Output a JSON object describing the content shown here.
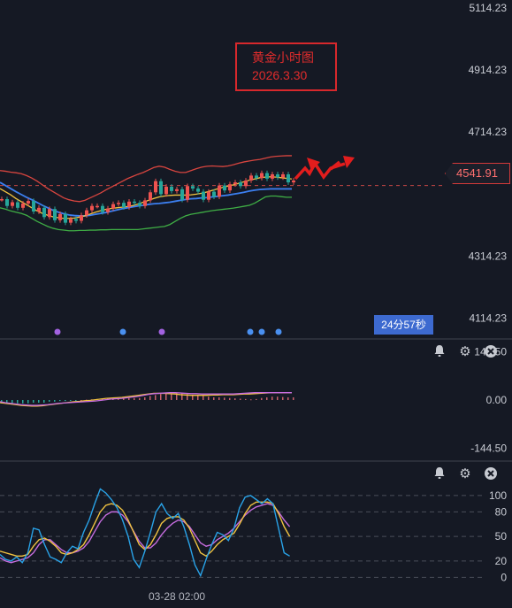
{
  "annotation": {
    "title": "黄金小时图",
    "date": "2026.3.30"
  },
  "price_tag": "4541.91",
  "countdown": "24分57秒",
  "time_label": "03-28 02:00",
  "colors": {
    "bg": "#151924",
    "up": "#ef5350",
    "down": "#26a69a",
    "upper_band": "#d8453f",
    "lower_band": "#3fae45",
    "mid_blue": "#3c7ff0",
    "ma_yellow": "#f1c341",
    "k_line": "#29a3e8",
    "d_line": "#f1c341",
    "j_line": "#c56cde",
    "dot_blue": "#4a90f0",
    "dot_purple": "#a262e0"
  },
  "panel_icons": {
    "alert": "bell-icon",
    "settings": "gear-icon",
    "close": "close-icon"
  },
  "chart_data": [
    {
      "type": "candlestick",
      "yticks": [
        "5114.23",
        "4914.23",
        "4714.23",
        "4314.23",
        "4114.23"
      ],
      "ylim": [
        4050,
        5140
      ],
      "last_price": 4541.91,
      "series": [
        {
          "name": "upper_band",
          "values": [
            4590,
            4588,
            4585,
            4583,
            4580,
            4574,
            4566,
            4556,
            4544,
            4532,
            4522,
            4512,
            4502,
            4496,
            4492,
            4490,
            4494,
            4502,
            4510,
            4518,
            4528,
            4537,
            4546,
            4555,
            4564,
            4571,
            4578,
            4584,
            4592,
            4600,
            4604,
            4601,
            4594,
            4588,
            4584,
            4584,
            4590,
            4596,
            4601,
            4604,
            4605,
            4604,
            4603,
            4605,
            4609,
            4614,
            4618,
            4621,
            4624,
            4626,
            4630,
            4634,
            4636,
            4637,
            4638,
            4638
          ]
        },
        {
          "name": "lower_band",
          "values": [
            4470,
            4466,
            4460,
            4456,
            4452,
            4446,
            4436,
            4426,
            4418,
            4410,
            4404,
            4400,
            4398,
            4396,
            4396,
            4397,
            4397,
            4398,
            4398,
            4399,
            4399,
            4400,
            4400,
            4400,
            4400,
            4400,
            4400,
            4402,
            4404,
            4406,
            4408,
            4410,
            4416,
            4426,
            4436,
            4444,
            4449,
            4452,
            4455,
            4458,
            4461,
            4463,
            4465,
            4467,
            4469,
            4472,
            4475,
            4478,
            4485,
            4495,
            4505,
            4508,
            4508,
            4506,
            4504,
            4504
          ]
        },
        {
          "name": "mid_blue",
          "values": [
            4552,
            4542,
            4532,
            4522,
            4513,
            4504,
            4496,
            4487,
            4478,
            4470,
            4462,
            4456,
            4451,
            4447,
            4445,
            4444,
            4444,
            4446,
            4449,
            4452,
            4455,
            4459,
            4463,
            4467,
            4470,
            4473,
            4476,
            4478,
            4481,
            4483,
            4484,
            4486,
            4488,
            4491,
            4494,
            4497,
            4499,
            4500,
            4502,
            4503,
            4505,
            4507,
            4509,
            4511,
            4514,
            4517,
            4520,
            4524,
            4527,
            4529,
            4530,
            4531,
            4531,
            4531,
            4531,
            4531
          ]
        },
        {
          "name": "ma_yellow",
          "values": [
            4532,
            4522,
            4512,
            4500,
            4490,
            4480,
            4470,
            4460,
            4452,
            4446,
            4441,
            4438,
            4436,
            4436,
            4437,
            4440,
            4444,
            4450,
            4456,
            4461,
            4465,
            4468,
            4470,
            4472,
            4474,
            4477,
            4482,
            4488,
            4494,
            4500,
            4505,
            4508,
            4510,
            4511,
            4511,
            4511,
            4512,
            4514,
            4517,
            4521,
            4526,
            4531,
            4536,
            4540,
            4544,
            4549,
            4554,
            4559,
            4563,
            4567,
            4569,
            4570,
            4569,
            4567,
            4565,
            4563
          ]
        },
        {
          "name": "candle_close",
          "values": [
            4498,
            4476,
            4488,
            4470,
            4484,
            4492,
            4458,
            4470,
            4440,
            4466,
            4430,
            4450,
            4422,
            4434,
            4428,
            4446,
            4462,
            4476,
            4476,
            4456,
            4468,
            4482,
            4486,
            4472,
            4490,
            4486,
            4476,
            4494,
            4520,
            4556,
            4514,
            4538,
            4524,
            4530,
            4496,
            4540,
            4532,
            4522,
            4496,
            4522,
            4506,
            4542,
            4526,
            4546,
            4552,
            4540,
            4558,
            4574,
            4566,
            4582,
            4564,
            4578,
            4568,
            4578,
            4552,
            4558
          ]
        }
      ]
    },
    {
      "type": "bar",
      "yticks": [
        "144.50",
        "0.00",
        "-144.50"
      ],
      "ylim": [
        -180,
        180
      ],
      "series": [
        {
          "name": "histogram",
          "values": [
            -10,
            -10,
            -10,
            -10,
            -10,
            -10,
            -8,
            -8,
            -8,
            -5,
            -5,
            -3,
            -3,
            -2,
            -1,
            0,
            1,
            2,
            3,
            4,
            5,
            5,
            5,
            6,
            6,
            6,
            6,
            8,
            12,
            15,
            18,
            20,
            20,
            22,
            20,
            18,
            16,
            14,
            12,
            10,
            8,
            8,
            7,
            6,
            5,
            4,
            3,
            2,
            3,
            6,
            8,
            10,
            10,
            9,
            8,
            8
          ]
        },
        {
          "name": "diff",
          "values": [
            -5,
            -8,
            -10,
            -12,
            -14,
            -15,
            -16,
            -16,
            -15,
            -14,
            -12,
            -10,
            -9,
            -8,
            -7,
            -6,
            -5,
            -4,
            -3,
            -1,
            1,
            3,
            4,
            5,
            7,
            9,
            11,
            14,
            17,
            19,
            20,
            21,
            22,
            22,
            21,
            20,
            19,
            19,
            18,
            18,
            18,
            18,
            18,
            18,
            18,
            19,
            20,
            21,
            22,
            22,
            22,
            22,
            22,
            22,
            22,
            22
          ]
        },
        {
          "name": "dea",
          "values": [
            -8,
            -10,
            -12,
            -14,
            -16,
            -17,
            -18,
            -18,
            -17,
            -15,
            -13,
            -11,
            -9,
            -7,
            -5,
            -4,
            -2,
            -1,
            1,
            3,
            5,
            6,
            7,
            8,
            10,
            12,
            14,
            16,
            18,
            20,
            20,
            20,
            19,
            18,
            16,
            15,
            14,
            14,
            14,
            14,
            15,
            15,
            16,
            16,
            16,
            17,
            18,
            18,
            19,
            20,
            21,
            22,
            22,
            22,
            22,
            22
          ]
        }
      ]
    },
    {
      "type": "line",
      "yticks": [
        "100",
        "80",
        "50",
        "20",
        "0"
      ],
      "ylim": [
        -5,
        115
      ],
      "series": [
        {
          "name": "K",
          "values": [
            28,
            22,
            20,
            25,
            18,
            30,
            60,
            58,
            40,
            25,
            22,
            18,
            30,
            38,
            35,
            55,
            70,
            90,
            108,
            103,
            95,
            85,
            70,
            50,
            22,
            12,
            32,
            55,
            80,
            90,
            78,
            72,
            78,
            62,
            40,
            15,
            2,
            22,
            40,
            55,
            52,
            45,
            60,
            85,
            98,
            100,
            95,
            90,
            96,
            90,
            60,
            30,
            26
          ]
        },
        {
          "name": "D",
          "values": [
            32,
            30,
            28,
            26,
            26,
            28,
            38,
            46,
            48,
            44,
            38,
            30,
            28,
            30,
            34,
            40,
            52,
            66,
            80,
            88,
            90,
            88,
            82,
            70,
            55,
            40,
            34,
            40,
            52,
            66,
            72,
            74,
            74,
            70,
            60,
            45,
            30,
            26,
            32,
            40,
            46,
            50,
            54,
            65,
            78,
            88,
            92,
            92,
            92,
            90,
            78,
            62,
            50
          ]
        },
        {
          "name": "J",
          "values": [
            24,
            20,
            18,
            20,
            22,
            24,
            30,
            40,
            46,
            46,
            40,
            34,
            30,
            30,
            32,
            36,
            44,
            56,
            68,
            76,
            80,
            80,
            76,
            68,
            56,
            44,
            36,
            36,
            42,
            52,
            60,
            66,
            70,
            68,
            62,
            52,
            42,
            38,
            40,
            46,
            50,
            54,
            60,
            68,
            76,
            82,
            86,
            88,
            90,
            88,
            80,
            70,
            62
          ]
        }
      ]
    }
  ]
}
